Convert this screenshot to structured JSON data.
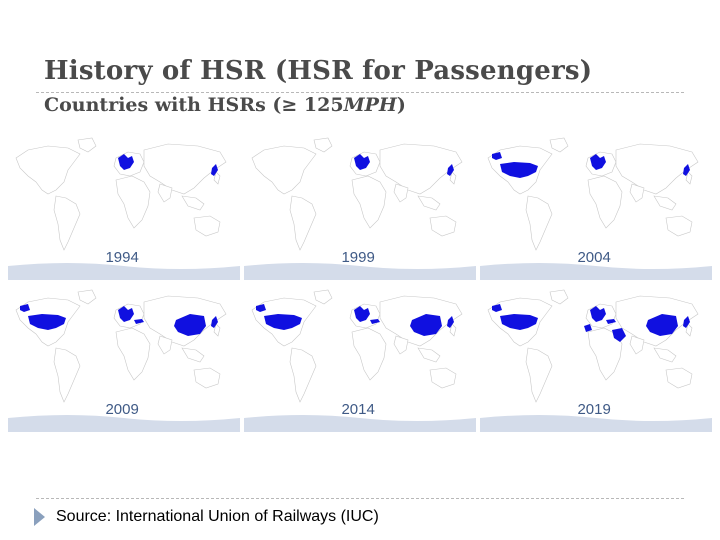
{
  "title": "History of HSR (HSR for Passengers)",
  "subtitle": {
    "prefix": "Countries with HSRs (",
    "symbol": "≥",
    "number": " 125",
    "unit": "MPH",
    "suffix": ")"
  },
  "maps": [
    {
      "year": "1994",
      "highlighted": [
        "europe",
        "japan"
      ]
    },
    {
      "year": "1999",
      "highlighted": [
        "europe",
        "japan"
      ]
    },
    {
      "year": "2004",
      "highlighted": [
        "usa",
        "europe",
        "japan"
      ]
    },
    {
      "year": "2009",
      "highlighted": [
        "usa",
        "europe",
        "china",
        "turkey",
        "japan"
      ]
    },
    {
      "year": "2014",
      "highlighted": [
        "usa",
        "europe",
        "china",
        "turkey",
        "japan"
      ]
    },
    {
      "year": "2019",
      "highlighted": [
        "usa",
        "europe",
        "morocco",
        "saudi",
        "china",
        "turkey",
        "japan"
      ]
    }
  ],
  "source": "Source:  International Union of Railways (IUC)",
  "colors": {
    "highlight": "#1010e0",
    "land": "#ffffff",
    "border": "#c8c8c8",
    "antarctica": "#d4dcea",
    "year": "#3f5a86"
  }
}
